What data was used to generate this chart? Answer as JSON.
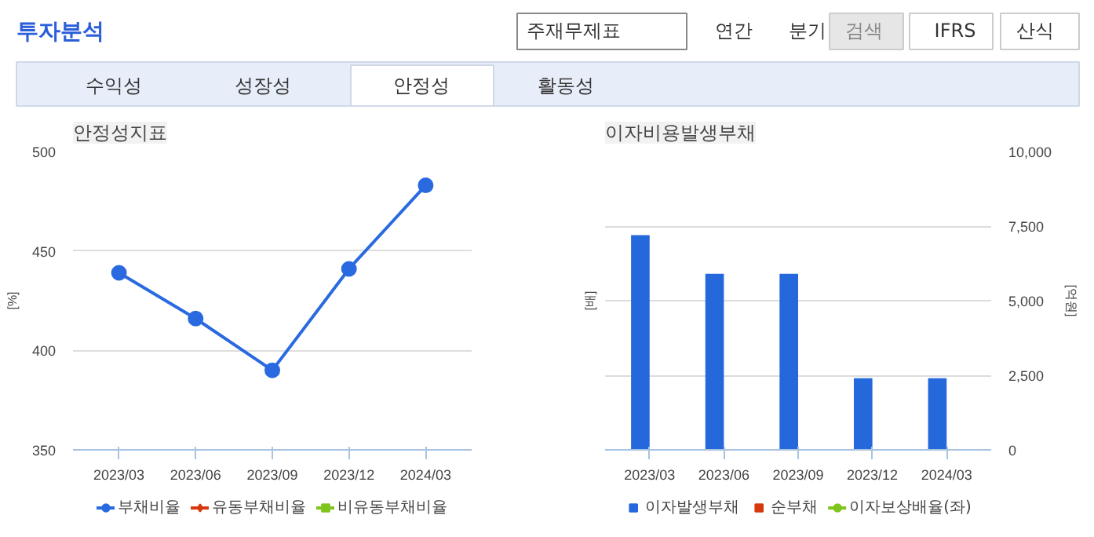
{
  "chart_data": [
    {
      "type": "other",
      "title": "투자분석",
      "annotations": [
        "주재무제표",
        "연간",
        "분기",
        "검색",
        "IFRS",
        "산식",
        "수익성",
        "성장성",
        "안정성",
        "활동성"
      ]
    },
    {
      "type": "line",
      "title": "안정성지표",
      "ylabel": "[%]",
      "categories": [
        "2023/03",
        "2023/06",
        "2023/09",
        "2023/12",
        "2024/03"
      ],
      "ylim": [
        350,
        500
      ],
      "yticks": [
        350,
        400,
        450,
        500
      ],
      "grid": "y",
      "legend": "bottom",
      "marker": "circle",
      "series": [
        {
          "name": "부채비율",
          "color": "#2a6ae0",
          "values": [
            439,
            416,
            390,
            441,
            483
          ]
        },
        {
          "name": "유동부채비율",
          "color": "#d6380f",
          "marker": "diamond",
          "values": [
            null,
            null,
            null,
            null,
            null
          ]
        },
        {
          "name": "비유동부채비율",
          "color": "#7fc41c",
          "marker": "square",
          "values": [
            null,
            null,
            null,
            null,
            null
          ]
        }
      ]
    },
    {
      "type": "bar",
      "title": "이자비용발생부채",
      "ylabel": "[배]",
      "y2label": "[억원]",
      "categories": [
        "2023/03",
        "2023/06",
        "2023/09",
        "2023/12",
        "2024/03"
      ],
      "y2lim": [
        0,
        10000
      ],
      "y2ticks": [
        {
          "value": 0,
          "label": "0"
        },
        {
          "value": 2500,
          "label": "2,500"
        },
        {
          "value": 5000,
          "label": "5,000"
        },
        {
          "value": 7500,
          "label": "7,500"
        },
        {
          "value": 10000,
          "label": "10,000"
        }
      ],
      "grid": "y",
      "legend": "bottom",
      "series": [
        {
          "name": "이자발생부채",
          "color": "#2468dc",
          "axis": "y2",
          "values": [
            7200,
            5900,
            5900,
            2400,
            2400
          ]
        },
        {
          "name": "순부채",
          "color": "#d6380f",
          "axis": "y2",
          "values": [
            null,
            null,
            null,
            null,
            null
          ]
        },
        {
          "name": "이자보상배율(좌)",
          "type": "line",
          "color": "#7fc41c",
          "marker": "circle",
          "values": [
            null,
            null,
            null,
            null,
            null
          ]
        }
      ]
    }
  ]
}
